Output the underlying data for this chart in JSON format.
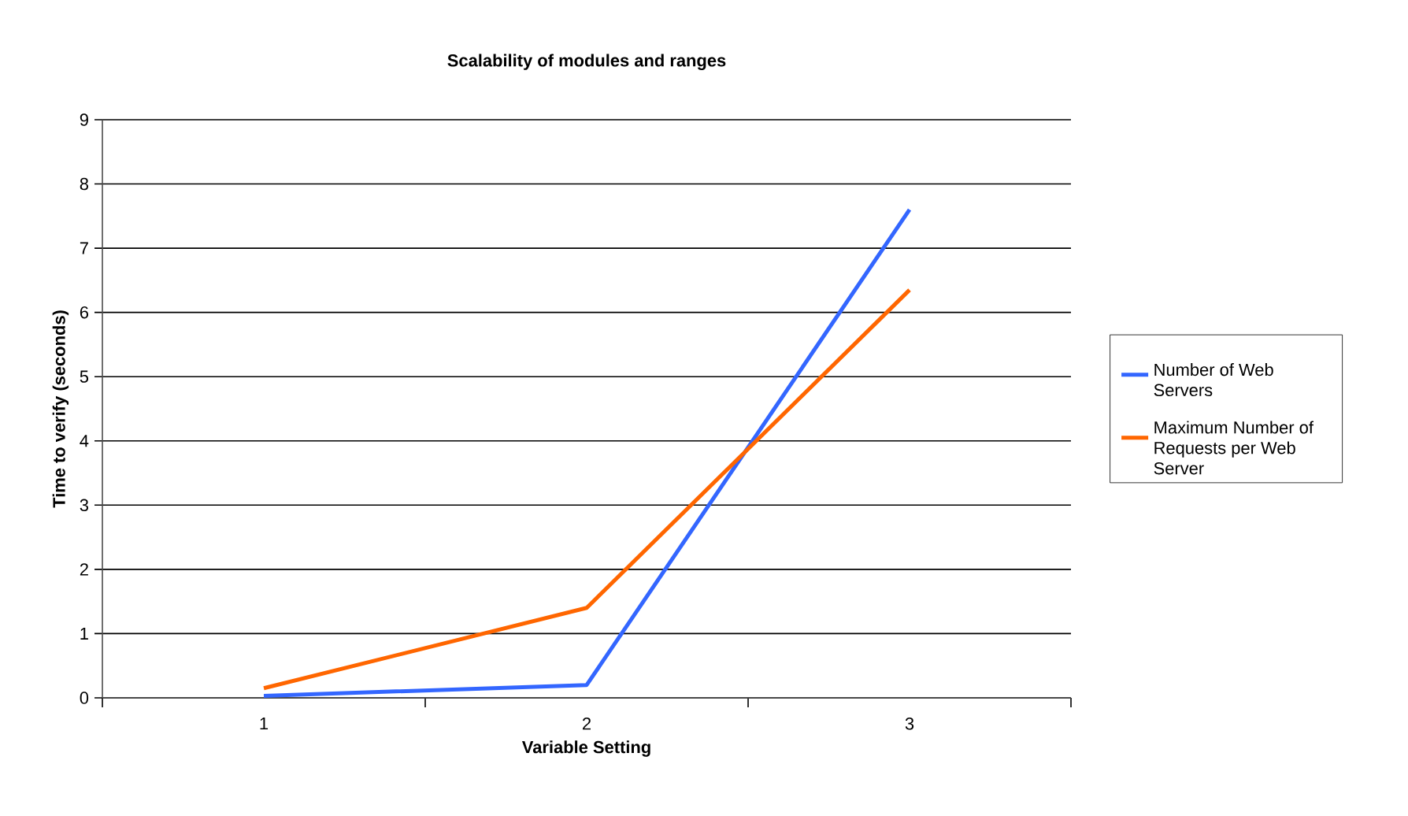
{
  "chart_data": {
    "type": "line",
    "title": "Scalability of modules and ranges",
    "xlabel": "Variable Setting",
    "ylabel": "Time to verify (seconds)",
    "categories": [
      "1",
      "2",
      "3"
    ],
    "series": [
      {
        "name": "Number of Web Servers",
        "color": "#3366ff",
        "values": [
          0.03,
          0.2,
          7.6
        ]
      },
      {
        "name": "Maximum Number of Requests per Web Server",
        "color": "#ff6600",
        "values": [
          0.15,
          1.4,
          6.35
        ]
      }
    ],
    "ylim": [
      0,
      9
    ],
    "yticks": [
      0,
      1,
      2,
      3,
      4,
      5,
      6,
      7,
      8,
      9
    ],
    "grid": "y",
    "legend": "right",
    "marker": "none",
    "line_style": "solid"
  }
}
